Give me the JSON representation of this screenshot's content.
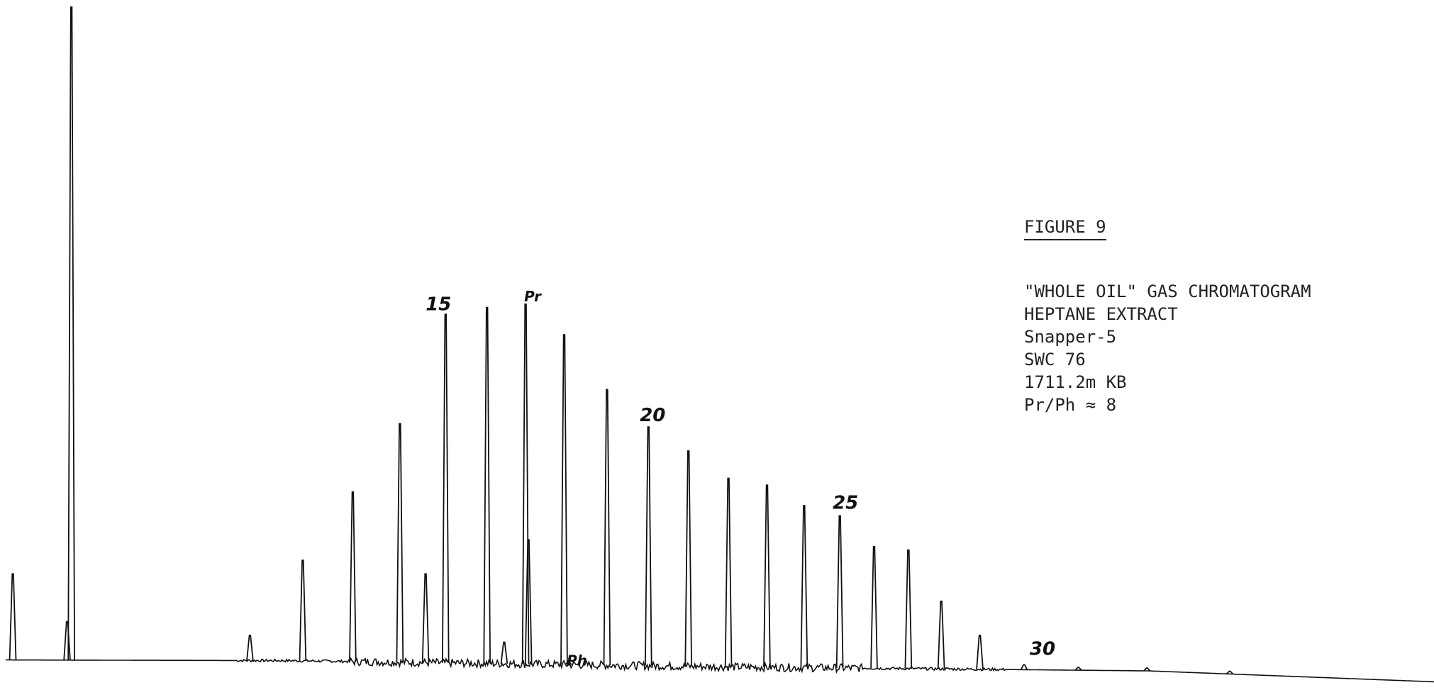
{
  "caption": {
    "figure_label": "FIGURE 9",
    "lines": [
      "\"WHOLE OIL\" GAS CHROMATOGRAM",
      "HEPTANE EXTRACT",
      "Snapper-5",
      "SWC 76",
      "1711.2m KB",
      "Pr/Ph ≈ 8"
    ]
  },
  "chart_data": {
    "type": "line",
    "title": "",
    "xlabel": "",
    "ylabel": "",
    "grid": false,
    "legend": "none",
    "note": "",
    "series": [
      {
        "name": "",
        "units_x": "relative retention (0–1 across record)",
        "units_y": "relative detector response (0–1 of record height)",
        "baseline": [
          [
            0.0,
            0.044
          ],
          [
            0.2,
            0.043
          ],
          [
            0.4,
            0.037
          ],
          [
            0.5,
            0.034
          ],
          [
            0.6,
            0.032
          ],
          [
            0.8,
            0.028
          ],
          [
            1.0,
            0.012
          ]
        ],
        "peaks": [
          {
            "label": "",
            "x": 0.005,
            "y": 0.17
          },
          {
            "label": "",
            "x": 0.046,
            "y": 1.0
          },
          {
            "label": "",
            "x": 0.043,
            "y": 0.1
          },
          {
            "label": "",
            "x": 0.171,
            "y": 0.08
          },
          {
            "label": "",
            "x": 0.208,
            "y": 0.19
          },
          {
            "label": "",
            "x": 0.243,
            "y": 0.29
          },
          {
            "label": "",
            "x": 0.276,
            "y": 0.39
          },
          {
            "label": "",
            "x": 0.294,
            "y": 0.17
          },
          {
            "label": "15",
            "x": 0.308,
            "y": 0.55
          },
          {
            "label": "",
            "x": 0.337,
            "y": 0.56
          },
          {
            "label": "Pr",
            "x": 0.364,
            "y": 0.565
          },
          {
            "label": "",
            "x": 0.366,
            "y": 0.22
          },
          {
            "label": "",
            "x": 0.349,
            "y": 0.07
          },
          {
            "label": "",
            "x": 0.391,
            "y": 0.52
          },
          {
            "label": "Ph",
            "x": 0.394,
            "y": 0.04
          },
          {
            "label": "",
            "x": 0.421,
            "y": 0.44
          },
          {
            "label": "20",
            "x": 0.45,
            "y": 0.385
          },
          {
            "label": "",
            "x": 0.478,
            "y": 0.35
          },
          {
            "label": "",
            "x": 0.506,
            "y": 0.31
          },
          {
            "label": "",
            "x": 0.533,
            "y": 0.3
          },
          {
            "label": "",
            "x": 0.559,
            "y": 0.27
          },
          {
            "label": "25",
            "x": 0.584,
            "y": 0.255
          },
          {
            "label": "",
            "x": 0.608,
            "y": 0.21
          },
          {
            "label": "",
            "x": 0.632,
            "y": 0.205
          },
          {
            "label": "",
            "x": 0.655,
            "y": 0.13
          },
          {
            "label": "",
            "x": 0.682,
            "y": 0.08
          },
          {
            "label": "30",
            "x": 0.713,
            "y": 0.037
          },
          {
            "label": "",
            "x": 0.751,
            "y": 0.023
          },
          {
            "label": "",
            "x": 0.799,
            "y": 0.008
          },
          {
            "label": "",
            "x": 0.857,
            "y": 0.003
          }
        ]
      }
    ],
    "annotations": [
      "15",
      "Pr",
      "Ph",
      "20",
      "25",
      "30"
    ]
  }
}
